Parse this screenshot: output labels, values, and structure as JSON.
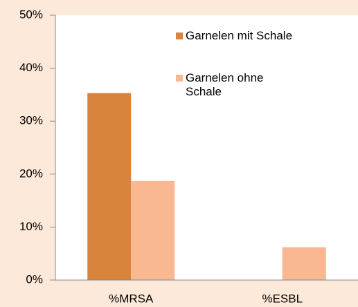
{
  "chart_data": {
    "type": "bar",
    "categories": [
      "%MRSA",
      "%ESBL"
    ],
    "series": [
      {
        "name": "Garnelen mit Schale",
        "color": "#d9843c",
        "values": [
          35.3,
          0
        ]
      },
      {
        "name": "Garnelen ohne Schale",
        "color": "#f9b792",
        "values": [
          18.7,
          6.2
        ]
      }
    ],
    "ylim": [
      0,
      50
    ],
    "yticks": [
      {
        "value": 0,
        "label": "0%"
      },
      {
        "value": 10,
        "label": "10%"
      },
      {
        "value": 20,
        "label": "20%"
      },
      {
        "value": 30,
        "label": "30%"
      },
      {
        "value": 40,
        "label": "40%"
      },
      {
        "value": 50,
        "label": "50%"
      }
    ]
  }
}
